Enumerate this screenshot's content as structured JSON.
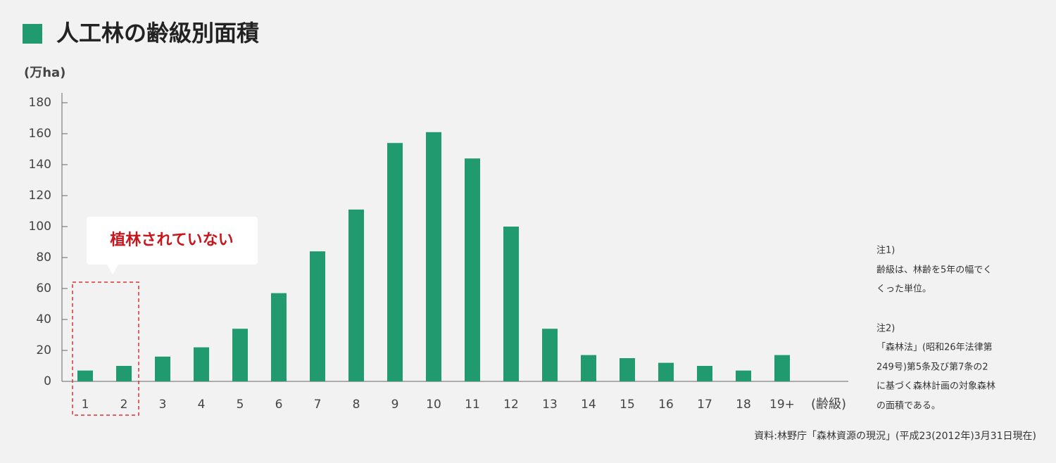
{
  "chart_data": {
    "type": "bar",
    "title": "人工林の齢級別面積",
    "y_axis_label": "(万ha)",
    "x_axis_label": "(齢級)",
    "callout": "植林されていない",
    "categories": [
      "1",
      "2",
      "3",
      "4",
      "5",
      "6",
      "7",
      "8",
      "9",
      "10",
      "11",
      "12",
      "13",
      "14",
      "15",
      "16",
      "17",
      "18",
      "19+"
    ],
    "values": [
      7,
      10,
      16,
      22,
      34,
      57,
      84,
      111,
      154,
      161,
      144,
      100,
      34,
      17,
      15,
      12,
      10,
      7,
      17
    ],
    "color": "#209a6e",
    "ylim": [
      0,
      180
    ],
    "yticks": [
      0,
      20,
      40,
      60,
      80,
      100,
      120,
      140,
      160,
      180
    ],
    "notes": [
      "注1)",
      "齢級は、林齢を5年の幅でく",
      "くった単位。",
      "注2)",
      "「森林法」(昭和26年法律第",
      "249号)第5条及び第7条の2",
      "に基づく森林計画の対象森林",
      "の面積である。"
    ],
    "source": "資料:林野庁「森林資源の現況」(平成23(2012年)3月31日現在)"
  }
}
